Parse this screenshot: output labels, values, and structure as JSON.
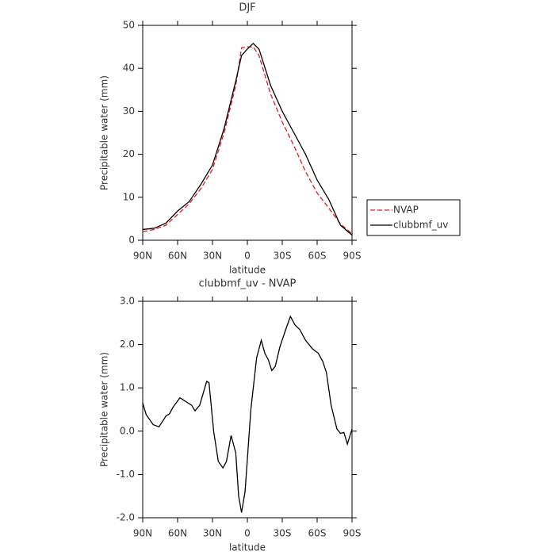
{
  "chart_data": [
    {
      "type": "line",
      "title": "DJF",
      "xlabel": "latitude",
      "ylabel": "Precipitable water (mm)",
      "x": [
        90,
        80,
        70,
        60,
        50,
        40,
        30,
        20,
        10,
        5,
        0,
        -5,
        -10,
        -20,
        -30,
        -40,
        -50,
        -60,
        -70,
        -80,
        -90
      ],
      "series": [
        {
          "name": "NVAP",
          "color": "#e41a1c",
          "dash": true,
          "values": [
            2,
            2.5,
            3.5,
            6,
            8.5,
            12,
            16.5,
            25,
            36,
            44.8,
            45,
            45,
            43,
            34,
            27.5,
            22,
            16,
            11,
            7.5,
            3.8,
            1.5
          ]
        },
        {
          "name": "clubbmf_uv",
          "color": "#000000",
          "dash": false,
          "values": [
            2.5,
            2.8,
            4,
            6.8,
            9,
            13,
            17.5,
            26,
            37,
            43,
            44.5,
            45.8,
            44.5,
            36,
            30,
            25,
            20,
            14,
            9.5,
            3.5,
            1.2
          ]
        }
      ],
      "xlim": [
        90,
        -90
      ],
      "xticks": [
        {
          "value": 90,
          "label": "90N"
        },
        {
          "value": 60,
          "label": "60N"
        },
        {
          "value": 30,
          "label": "30N"
        },
        0,
        {
          "value": -30,
          "label": "30S"
        },
        {
          "value": -60,
          "label": "60S"
        },
        {
          "value": -90,
          "label": "90S"
        }
      ],
      "ylim": [
        0,
        50
      ],
      "yticks": [
        0,
        10,
        20,
        30,
        40,
        50
      ],
      "legend": "right"
    },
    {
      "type": "line",
      "title": "clubbmf_uv - NVAP",
      "xlabel": "latitude",
      "ylabel": "Precipitable water (mm)",
      "x": [
        90,
        87,
        81,
        76,
        70,
        67,
        64,
        58,
        48,
        45,
        41,
        35,
        33,
        29,
        25,
        21,
        18,
        14,
        10,
        7.5,
        5,
        2,
        -3,
        -8,
        -12,
        -15,
        -18,
        -21,
        -24,
        -28,
        -33,
        -37,
        -41,
        -45,
        -50,
        -56,
        -61,
        -65,
        -68,
        -72,
        -77,
        -80,
        -83,
        -86,
        -90
      ],
      "series": [
        {
          "name": "clubbmf_uv - NVAP",
          "color": "#000000",
          "dash": false,
          "values": [
            0.65,
            0.38,
            0.15,
            0.1,
            0.35,
            0.4,
            0.55,
            0.77,
            0.6,
            0.47,
            0.6,
            1.15,
            1.12,
            0.0,
            -0.7,
            -0.85,
            -0.7,
            -0.1,
            -0.5,
            -1.5,
            -1.88,
            -1.4,
            0.5,
            1.7,
            2.1,
            1.8,
            1.65,
            1.4,
            1.5,
            1.95,
            2.35,
            2.65,
            2.45,
            2.35,
            2.1,
            1.9,
            1.8,
            1.6,
            1.35,
            0.6,
            0.05,
            -0.05,
            -0.03,
            -0.3,
            0.05
          ]
        }
      ],
      "xlim": [
        90,
        -90
      ],
      "xticks": [
        {
          "value": 90,
          "label": "90N"
        },
        {
          "value": 60,
          "label": "60N"
        },
        {
          "value": 30,
          "label": "30N"
        },
        0,
        {
          "value": -30,
          "label": "30S"
        },
        {
          "value": -60,
          "label": "60S"
        },
        {
          "value": -90,
          "label": "90S"
        }
      ],
      "ylim": [
        -2,
        3
      ],
      "yticks": [
        {
          "value": -2,
          "label": "-2.0"
        },
        {
          "value": -1,
          "label": "-1.0"
        },
        {
          "value": 0,
          "label": "0.0"
        },
        {
          "value": 1,
          "label": "1.0"
        },
        {
          "value": 2,
          "label": "2.0"
        },
        {
          "value": 3,
          "label": "3.0"
        }
      ]
    }
  ]
}
